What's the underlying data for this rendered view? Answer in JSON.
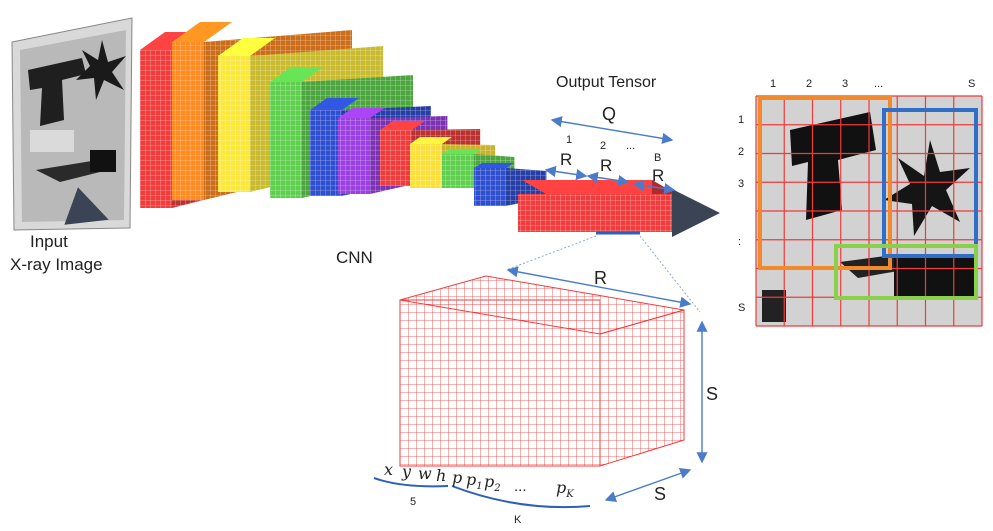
{
  "input": {
    "label_line1": "Input",
    "label_line2": "X-ray Image"
  },
  "cnn": {
    "label": "CNN",
    "layer_colors": [
      "#f03c3c",
      "#ff8a1f",
      "#fbe83a",
      "#5ed04e",
      "#2e4fd0",
      "#9b3fe0",
      "#ec3c3c",
      "#fbe03a",
      "#5ed04e",
      "#2e4fd0"
    ]
  },
  "tensor": {
    "title": "Output Tensor",
    "q_label": "Q",
    "r_label": "R",
    "idx_1": "1",
    "idx_2": "2",
    "idx_dots": "...",
    "idx_b": "B",
    "color": "#f03c3c"
  },
  "cube": {
    "r_label": "R",
    "s_right": "S",
    "s_bottom": "S",
    "vec": {
      "x": "x",
      "y": "y",
      "w": "w",
      "h": "h",
      "p": "p",
      "p1": "p",
      "p1_sub": "1",
      "p2": "p",
      "p2_sub": "2",
      "dots": "...",
      "pk": "p",
      "pk_sub": "K"
    },
    "count_5": "5",
    "count_k": "K"
  },
  "grid": {
    "col_labels": [
      "1",
      "2",
      "3",
      "...",
      "S"
    ],
    "row_labels": [
      "1",
      "2",
      "3",
      ":",
      "S"
    ],
    "cells": 8,
    "box_colors": [
      "#f08a2c",
      "#2f6fc8",
      "#8bd04a"
    ]
  }
}
